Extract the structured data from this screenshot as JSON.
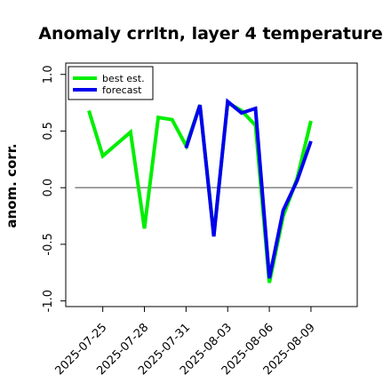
{
  "chart_data": {
    "type": "line",
    "title": "Anomaly crrltn, layer 4 temperature",
    "xlabel": "",
    "ylabel": "anom. corr.",
    "ylim": [
      -1.05,
      1.1
    ],
    "xlim": [
      "2025-07-22T08:00",
      "2025-08-12T08:00"
    ],
    "yticks": [
      {
        "value": 1.0,
        "label": "1.0"
      },
      {
        "value": 0.5,
        "label": "0.5"
      },
      {
        "value": 0.0,
        "label": "0.0"
      },
      {
        "value": -0.5,
        "label": "-0.5"
      },
      {
        "value": -1.0,
        "label": "-1.0"
      }
    ],
    "xticks": [
      {
        "value": "2025-07-25",
        "label": "2025-07-25",
        "color": "#000000"
      },
      {
        "value": "2025-07-28",
        "label": "2025-07-28",
        "color": "#000000"
      },
      {
        "value": "2025-07-31",
        "label": "2025-07-31",
        "color": "#008000"
      },
      {
        "value": "2025-08-03",
        "label": "2025-08-03",
        "color": "#000000"
      },
      {
        "value": "2025-08-06",
        "label": "2025-08-06",
        "color": "#000000"
      },
      {
        "value": "2025-08-09",
        "label": "2025-08-09",
        "color": "#000000"
      }
    ],
    "zero_line": true,
    "grid": false,
    "legend_position": "top-left",
    "series": [
      {
        "name": "best est.",
        "color": "#00ee00",
        "x": [
          "2025-07-24",
          "2025-07-25",
          "2025-07-27",
          "2025-07-28",
          "2025-07-29",
          "2025-07-30",
          "2025-07-31",
          "2025-08-01",
          "2025-08-02",
          "2025-08-03",
          "2025-08-04",
          "2025-08-05",
          "2025-08-06",
          "2025-08-07",
          "2025-08-08",
          "2025-08-09"
        ],
        "values": [
          0.68,
          0.28,
          0.49,
          -0.36,
          0.62,
          0.6,
          0.37,
          0.73,
          -0.42,
          0.75,
          0.68,
          0.55,
          -0.84,
          -0.25,
          0.08,
          0.59
        ]
      },
      {
        "name": "forecast",
        "color": "#0000ee",
        "x": [
          "2025-07-31",
          "2025-08-01",
          "2025-08-02",
          "2025-08-03",
          "2025-08-04",
          "2025-08-05",
          "2025-08-06",
          "2025-08-07",
          "2025-08-08",
          "2025-08-09"
        ],
        "values": [
          0.35,
          0.73,
          -0.43,
          0.76,
          0.66,
          0.7,
          -0.8,
          -0.2,
          0.06,
          0.41
        ]
      }
    ]
  }
}
